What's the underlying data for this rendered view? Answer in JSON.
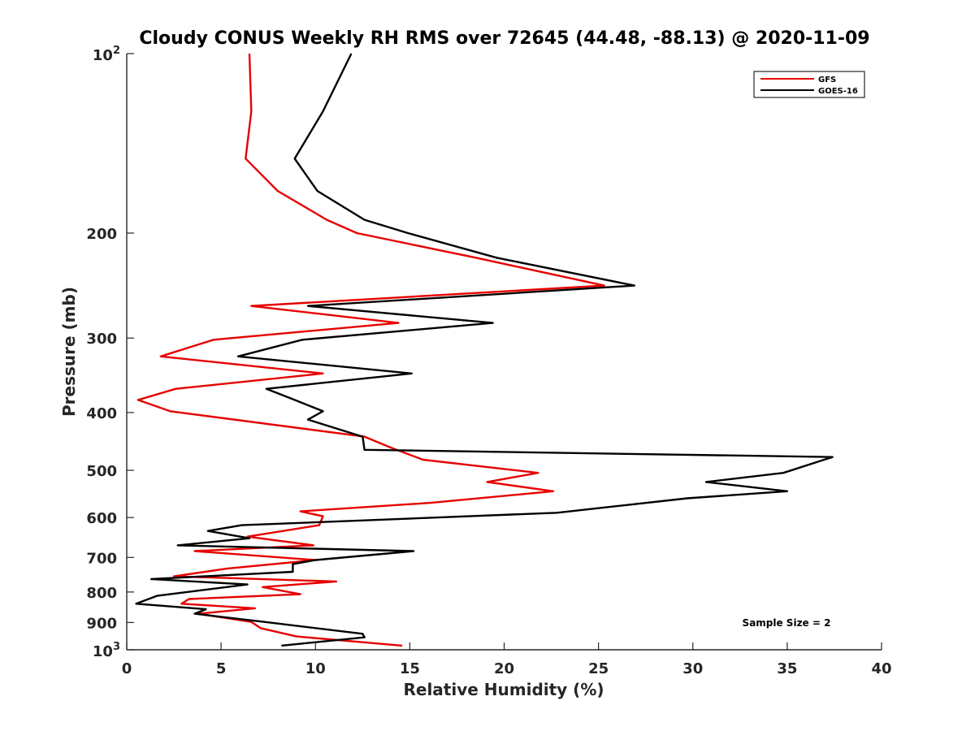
{
  "chart_data": {
    "type": "line",
    "title": "Cloudy CONUS Weekly RH RMS over 72645 (44.48, -88.13) @ 2020-11-09",
    "xlabel": "Relative Humidity (%)",
    "ylabel": "Pressure (mb)",
    "xlim": [
      0,
      40
    ],
    "ylim": [
      100,
      1000
    ],
    "y_scale": "log",
    "y_reversed": true,
    "grid": false,
    "legend_position": "top-right",
    "x_ticks": [
      "0",
      "5",
      "10",
      "15",
      "20",
      "25",
      "30",
      "35",
      "40"
    ],
    "y_ticks": [
      {
        "value": 100,
        "base": "10",
        "exp": "2"
      },
      {
        "value": 200,
        "label": "200"
      },
      {
        "value": 300,
        "label": "300"
      },
      {
        "value": 400,
        "label": "400"
      },
      {
        "value": 500,
        "label": "500"
      },
      {
        "value": 600,
        "label": "600"
      },
      {
        "value": 700,
        "label": "700"
      },
      {
        "value": 800,
        "label": "800"
      },
      {
        "value": 900,
        "label": "900"
      },
      {
        "value": 1000,
        "base": "10",
        "exp": "3"
      }
    ],
    "annotation": "Sample Size = 2",
    "series": [
      {
        "name": "GFS",
        "color": "#e60000",
        "points": [
          [
            6.5,
            100
          ],
          [
            6.6,
            125
          ],
          [
            6.3,
            150
          ],
          [
            8.0,
            170
          ],
          [
            10.6,
            190
          ],
          [
            12.2,
            200
          ],
          [
            18.5,
            220
          ],
          [
            25.3,
            245
          ],
          [
            6.6,
            265
          ],
          [
            14.4,
            283
          ],
          [
            4.6,
            302
          ],
          [
            1.8,
            322
          ],
          [
            10.4,
            344
          ],
          [
            2.6,
            365
          ],
          [
            0.6,
            381
          ],
          [
            2.3,
            398
          ],
          [
            12.6,
            439
          ],
          [
            14.0,
            458
          ],
          [
            15.7,
            480
          ],
          [
            21.8,
            505
          ],
          [
            19.1,
            523
          ],
          [
            22.6,
            542
          ],
          [
            16.1,
            567
          ],
          [
            9.2,
            586
          ],
          [
            10.4,
            597
          ],
          [
            10.2,
            618
          ],
          [
            6.4,
            646
          ],
          [
            9.9,
            668
          ],
          [
            3.6,
            683
          ],
          [
            10.0,
            707
          ],
          [
            5.3,
            731
          ],
          [
            2.5,
            753
          ],
          [
            11.1,
            768
          ],
          [
            7.2,
            785
          ],
          [
            9.2,
            807
          ],
          [
            3.3,
            822
          ],
          [
            2.9,
            837
          ],
          [
            6.8,
            852
          ],
          [
            3.8,
            870
          ],
          [
            6.6,
            898
          ],
          [
            7.1,
            920
          ],
          [
            9.0,
            950
          ],
          [
            14.6,
            984
          ]
        ]
      },
      {
        "name": "GOES-16",
        "color": "#000000",
        "points": [
          [
            11.9,
            100
          ],
          [
            10.4,
            125
          ],
          [
            8.9,
            150
          ],
          [
            10.1,
            170
          ],
          [
            12.6,
            190
          ],
          [
            14.9,
            200
          ],
          [
            19.6,
            220
          ],
          [
            26.9,
            245
          ],
          [
            9.6,
            265
          ],
          [
            19.4,
            283
          ],
          [
            9.3,
            302
          ],
          [
            5.9,
            322
          ],
          [
            15.1,
            344
          ],
          [
            7.4,
            365
          ],
          [
            8.9,
            381
          ],
          [
            10.4,
            398
          ],
          [
            9.6,
            411
          ],
          [
            12.5,
            439
          ],
          [
            12.6,
            462
          ],
          [
            37.4,
            475
          ],
          [
            34.8,
            505
          ],
          [
            30.7,
            523
          ],
          [
            35.0,
            542
          ],
          [
            29.7,
            557
          ],
          [
            22.8,
            589
          ],
          [
            6.1,
            618
          ],
          [
            4.3,
            632
          ],
          [
            6.5,
            650
          ],
          [
            2.7,
            668
          ],
          [
            15.2,
            683
          ],
          [
            10.0,
            707
          ],
          [
            8.8,
            718
          ],
          [
            8.8,
            740
          ],
          [
            1.3,
            761
          ],
          [
            6.4,
            777
          ],
          [
            1.6,
            812
          ],
          [
            0.5,
            837
          ],
          [
            4.2,
            855
          ],
          [
            3.6,
            870
          ],
          [
            7.3,
            898
          ],
          [
            12.5,
            940
          ],
          [
            12.6,
            953
          ],
          [
            8.2,
            984
          ]
        ]
      }
    ]
  }
}
